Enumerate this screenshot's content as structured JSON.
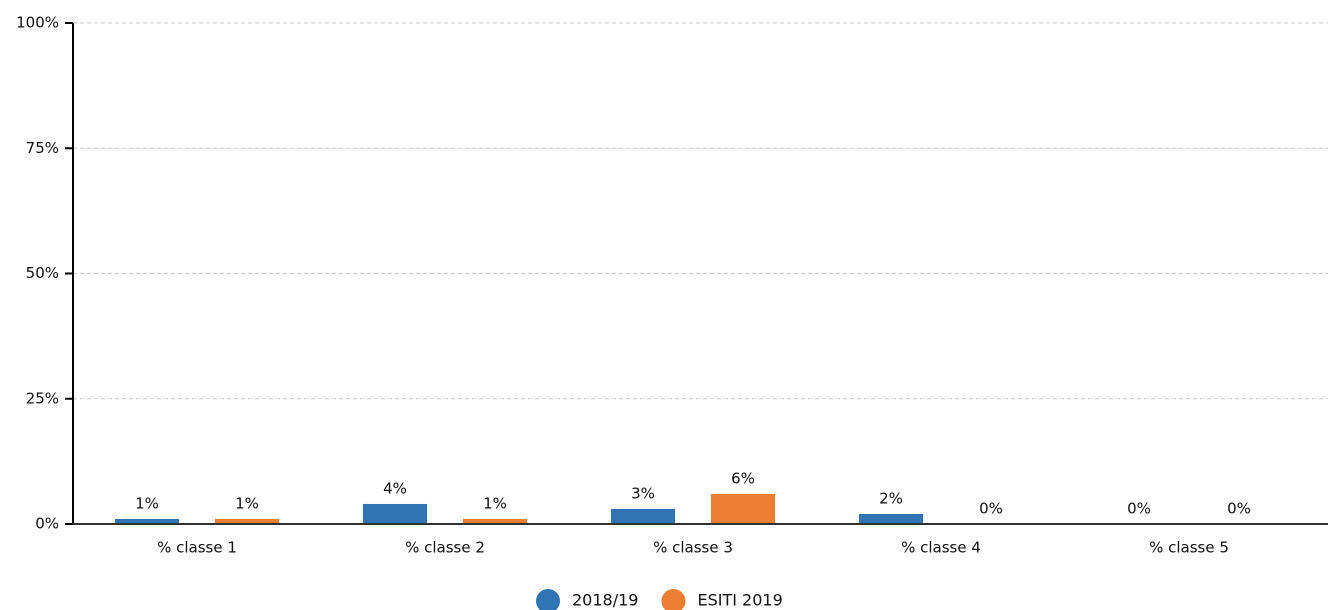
{
  "chart_data": {
    "type": "bar",
    "categories": [
      "% classe 1",
      "% classe 2",
      "% classe 3",
      "% classe 4",
      "% classe 5"
    ],
    "series": [
      {
        "name": "2018/19",
        "color": "#2f75b5",
        "values": [
          1,
          4,
          3,
          2,
          0
        ],
        "value_labels": [
          "1%",
          "4%",
          "3%",
          "2%",
          "0%"
        ]
      },
      {
        "name": "ESITI 2019",
        "color": "#ed7d31",
        "values": [
          1,
          1,
          6,
          0,
          0
        ],
        "value_labels": [
          "1%",
          "1%",
          "6%",
          "0%",
          "0%"
        ]
      }
    ],
    "ylim": [
      0,
      100
    ],
    "yticks": [
      {
        "value": 0,
        "label": "0%"
      },
      {
        "value": 25,
        "label": "25%"
      },
      {
        "value": 50,
        "label": "50%"
      },
      {
        "value": 75,
        "label": "75%"
      },
      {
        "value": 100,
        "label": "100%"
      }
    ],
    "grid": true,
    "legend": "bottom"
  }
}
